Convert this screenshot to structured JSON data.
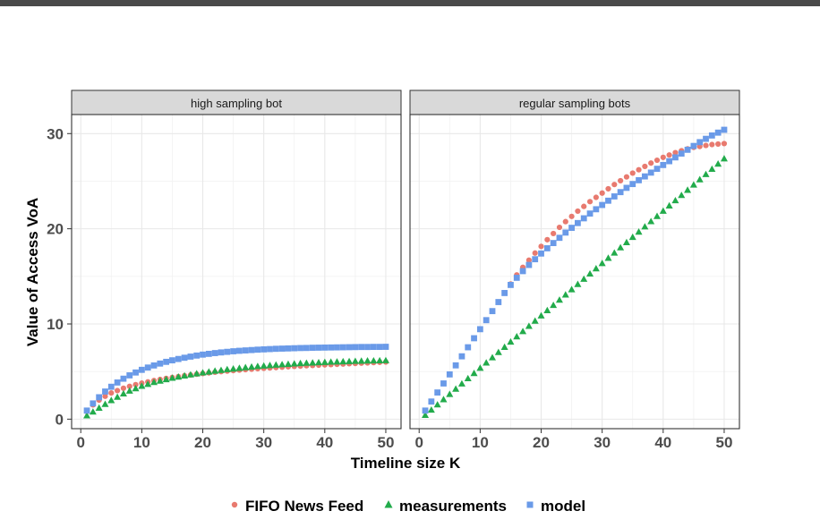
{
  "chart_data": {
    "type": "scatter",
    "xlabel": "Timeline size K",
    "ylabel": "Value of Access VoA",
    "xlim": [
      -1.5,
      52.5
    ],
    "ylim": [
      -1,
      32
    ],
    "x_ticks": [
      0,
      10,
      20,
      30,
      40,
      50
    ],
    "y_ticks": [
      0,
      10,
      20,
      30
    ],
    "grid": true,
    "legend_position": "bottom",
    "panels": [
      {
        "title": "high sampling bot",
        "series": [
          {
            "name": "FIFO News Feed",
            "color": "#e87a6f",
            "shape": "circle",
            "x": [
              1,
              2,
              3,
              4,
              5,
              6,
              7,
              8,
              9,
              10,
              11,
              12,
              13,
              14,
              15,
              16,
              17,
              18,
              19,
              20,
              21,
              22,
              23,
              24,
              25,
              26,
              27,
              28,
              29,
              30,
              31,
              32,
              33,
              34,
              35,
              36,
              37,
              38,
              39,
              40,
              41,
              42,
              43,
              44,
              45,
              46,
              47,
              48,
              49,
              50
            ],
            "y": [
              0.8,
              1.5,
              2.0,
              2.4,
              2.75,
              3.0,
              3.25,
              3.45,
              3.62,
              3.78,
              3.92,
              4.05,
              4.17,
              4.28,
              4.38,
              4.47,
              4.56,
              4.64,
              4.72,
              4.79,
              4.86,
              4.93,
              4.99,
              5.05,
              5.1,
              5.15,
              5.2,
              5.25,
              5.3,
              5.34,
              5.38,
              5.42,
              5.46,
              5.5,
              5.54,
              5.57,
              5.61,
              5.64,
              5.67,
              5.7,
              5.73,
              5.76,
              5.79,
              5.82,
              5.85,
              5.88,
              5.91,
              5.94,
              5.97,
              6.0
            ]
          },
          {
            "name": "measurements",
            "color": "#22ab4b",
            "shape": "triangle",
            "x": [
              1,
              2,
              3,
              4,
              5,
              6,
              7,
              8,
              9,
              10,
              11,
              12,
              13,
              14,
              15,
              16,
              17,
              18,
              19,
              20,
              21,
              22,
              23,
              24,
              25,
              26,
              27,
              28,
              29,
              30,
              31,
              32,
              33,
              34,
              35,
              36,
              37,
              38,
              39,
              40,
              41,
              42,
              43,
              44,
              45,
              46,
              47,
              48,
              49,
              50
            ],
            "y": [
              0.35,
              0.75,
              1.15,
              1.55,
              1.95,
              2.3,
              2.65,
              2.95,
              3.2,
              3.45,
              3.65,
              3.85,
              4.0,
              4.15,
              4.3,
              4.42,
              4.54,
              4.65,
              4.76,
              4.86,
              4.95,
              5.04,
              5.12,
              5.2,
              5.27,
              5.34,
              5.41,
              5.47,
              5.53,
              5.58,
              5.63,
              5.68,
              5.72,
              5.76,
              5.8,
              5.84,
              5.87,
              5.9,
              5.93,
              5.96,
              5.99,
              6.01,
              6.03,
              6.05,
              6.07,
              6.09,
              6.11,
              6.12,
              6.13,
              6.14
            ]
          },
          {
            "name": "model",
            "color": "#6a9ae8",
            "shape": "square",
            "x": [
              1,
              2,
              3,
              4,
              5,
              6,
              7,
              8,
              9,
              10,
              11,
              12,
              13,
              14,
              15,
              16,
              17,
              18,
              19,
              20,
              21,
              22,
              23,
              24,
              25,
              26,
              27,
              28,
              29,
              30,
              31,
              32,
              33,
              34,
              35,
              36,
              37,
              38,
              39,
              40,
              41,
              42,
              43,
              44,
              45,
              46,
              47,
              48,
              49,
              50
            ],
            "y": [
              0.9,
              1.65,
              2.3,
              2.9,
              3.4,
              3.85,
              4.25,
              4.6,
              4.9,
              5.18,
              5.42,
              5.64,
              5.84,
              6.02,
              6.18,
              6.32,
              6.45,
              6.57,
              6.68,
              6.78,
              6.86,
              6.94,
              7.01,
              7.07,
              7.13,
              7.18,
              7.22,
              7.26,
              7.3,
              7.33,
              7.36,
              7.39,
              7.41,
              7.43,
              7.45,
              7.47,
              7.48,
              7.5,
              7.51,
              7.52,
              7.53,
              7.54,
              7.55,
              7.56,
              7.57,
              7.58,
              7.58,
              7.59,
              7.59,
              7.6
            ]
          }
        ]
      },
      {
        "title": "regular sampling bots",
        "series": [
          {
            "name": "FIFO News Feed",
            "color": "#e87a6f",
            "shape": "circle",
            "x": [
              1,
              2,
              3,
              4,
              5,
              6,
              7,
              8,
              9,
              10,
              11,
              12,
              13,
              14,
              15,
              16,
              17,
              18,
              19,
              20,
              21,
              22,
              23,
              24,
              25,
              26,
              27,
              28,
              29,
              30,
              31,
              32,
              33,
              34,
              35,
              36,
              37,
              38,
              39,
              40,
              41,
              42,
              43,
              44,
              45,
              46,
              47,
              48,
              49,
              50
            ],
            "y": [
              0.9,
              1.85,
              2.8,
              3.75,
              4.7,
              5.65,
              6.6,
              7.55,
              8.5,
              9.45,
              10.4,
              11.35,
              12.3,
              13.25,
              14.2,
              15.15,
              15.95,
              16.7,
              17.45,
              18.15,
              18.85,
              19.5,
              20.15,
              20.75,
              21.3,
              21.85,
              22.35,
              22.85,
              23.3,
              23.75,
              24.2,
              24.65,
              25.05,
              25.45,
              25.85,
              26.2,
              26.55,
              26.9,
              27.2,
              27.5,
              27.75,
              28.0,
              28.2,
              28.4,
              28.55,
              28.65,
              28.75,
              28.85,
              28.9,
              28.95
            ]
          },
          {
            "name": "measurements",
            "color": "#22ab4b",
            "shape": "triangle",
            "x": [
              1,
              2,
              3,
              4,
              5,
              6,
              7,
              8,
              9,
              10,
              11,
              12,
              13,
              14,
              15,
              16,
              17,
              18,
              19,
              20,
              21,
              22,
              23,
              24,
              25,
              26,
              27,
              28,
              29,
              30,
              31,
              32,
              33,
              34,
              35,
              36,
              37,
              38,
              39,
              40,
              41,
              42,
              43,
              44,
              45,
              46,
              47,
              48,
              49,
              50
            ],
            "y": [
              0.4,
              0.95,
              1.5,
              2.05,
              2.6,
              3.15,
              3.7,
              4.25,
              4.8,
              5.35,
              5.9,
              6.45,
              7.0,
              7.55,
              8.1,
              8.65,
              9.2,
              9.75,
              10.3,
              10.85,
              11.4,
              11.95,
              12.5,
              13.05,
              13.6,
              14.15,
              14.7,
              15.25,
              15.8,
              16.35,
              16.9,
              17.45,
              18.0,
              18.55,
              19.1,
              19.65,
              20.2,
              20.75,
              21.3,
              21.85,
              22.4,
              22.95,
              23.5,
              24.05,
              24.6,
              25.15,
              25.7,
              26.25,
              26.8,
              27.35
            ]
          },
          {
            "name": "model",
            "color": "#6a9ae8",
            "shape": "square",
            "x": [
              1,
              2,
              3,
              4,
              5,
              6,
              7,
              8,
              9,
              10,
              11,
              12,
              13,
              14,
              15,
              16,
              17,
              18,
              19,
              20,
              21,
              22,
              23,
              24,
              25,
              26,
              27,
              28,
              29,
              30,
              31,
              32,
              33,
              34,
              35,
              36,
              37,
              38,
              39,
              40,
              41,
              42,
              43,
              44,
              45,
              46,
              47,
              48,
              49,
              50
            ],
            "y": [
              0.9,
              1.85,
              2.8,
              3.75,
              4.7,
              5.65,
              6.6,
              7.55,
              8.5,
              9.45,
              10.4,
              11.35,
              12.3,
              13.25,
              14.1,
              14.85,
              15.55,
              16.2,
              16.8,
              17.4,
              17.95,
              18.5,
              19.05,
              19.6,
              20.1,
              20.6,
              21.1,
              21.6,
              22.05,
              22.5,
              22.95,
              23.4,
              23.85,
              24.3,
              24.7,
              25.1,
              25.5,
              25.9,
              26.3,
              26.7,
              27.1,
              27.5,
              27.9,
              28.3,
              28.7,
              29.1,
              29.45,
              29.8,
              30.1,
              30.4
            ]
          }
        ]
      }
    ]
  }
}
